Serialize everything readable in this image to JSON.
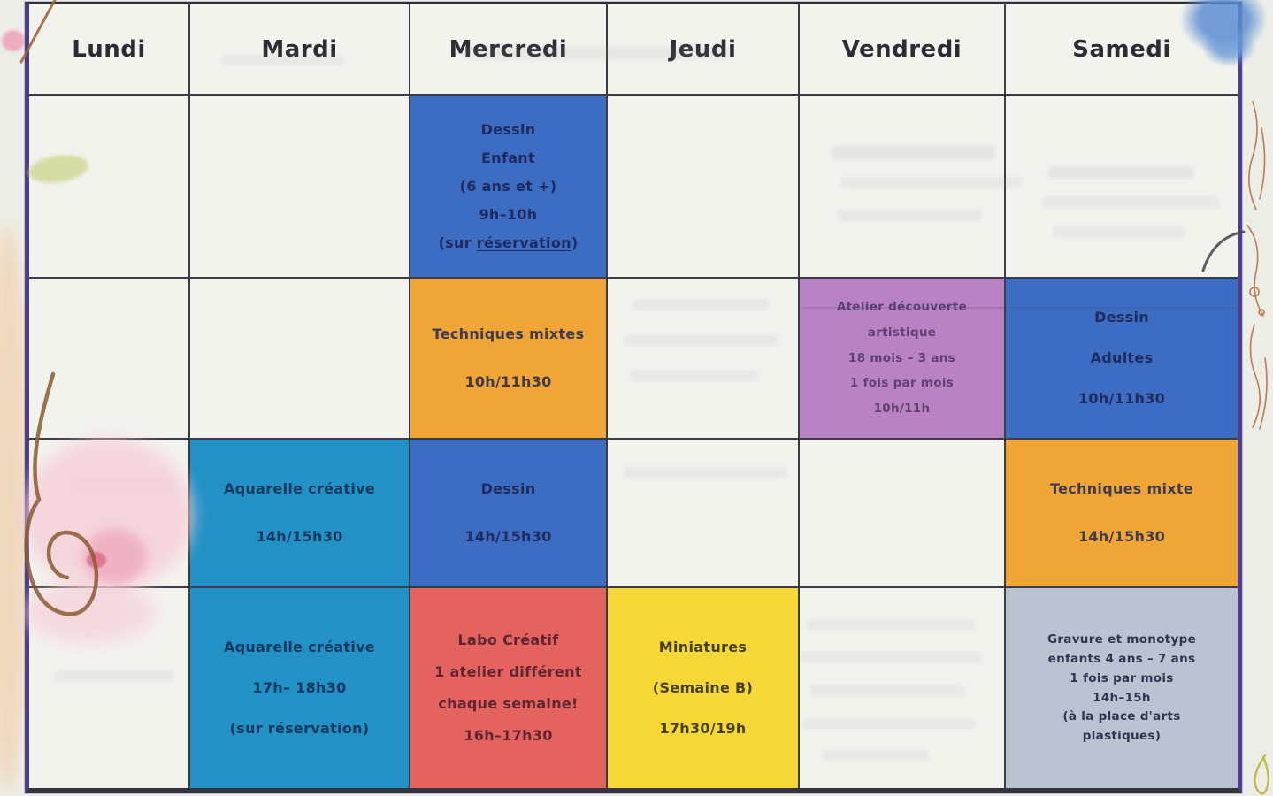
{
  "schedule": {
    "days": [
      {
        "id": "lundi",
        "label": "Lundi"
      },
      {
        "id": "mardi",
        "label": "Mardi"
      },
      {
        "id": "mercredi",
        "label": "Mercredi"
      },
      {
        "id": "jeudi",
        "label": "Jeudi"
      },
      {
        "id": "vendredi",
        "label": "Vendredi"
      },
      {
        "id": "samedi",
        "label": "Samedi"
      }
    ],
    "palette": {
      "blue": {
        "bg": "#3c6dc3",
        "text": "#1f2a5e"
      },
      "orange": {
        "bg": "#f0a636",
        "text": "#3f3a4d"
      },
      "teal": {
        "bg": "#2191c6",
        "text": "#16395f"
      },
      "purple": {
        "bg": "#b982c4",
        "text": "#5d3f72"
      },
      "red": {
        "bg": "#e5635e",
        "text": "#5f2632"
      },
      "yellow": {
        "bg": "#f5d835",
        "text": "#474019"
      },
      "gray": {
        "bg": "#b9c3d2",
        "text": "#2f3550"
      }
    },
    "frame_color": "#4d3f8c",
    "events": [
      {
        "id": "dessin-enfant",
        "day": "mercredi",
        "slot": 1,
        "color": "blue",
        "lines": [
          "Dessin",
          "Enfant",
          "(6 ans et +)",
          "9h–10h",
          "(sur réservation)"
        ],
        "underline": "réservation"
      },
      {
        "id": "techniques-mixtes-mercredi",
        "day": "mercredi",
        "slot": 2,
        "color": "orange",
        "lines": [
          "Techniques mixtes",
          "10h/11h30"
        ]
      },
      {
        "id": "atelier-decouverte",
        "day": "vendredi",
        "slot": 2,
        "color": "purple",
        "small": true,
        "lines": [
          "Atelier découverte",
          "artistique",
          "18 mois – 3 ans",
          "1 fois par mois",
          "10h/11h"
        ]
      },
      {
        "id": "dessin-adultes",
        "day": "samedi",
        "slot": 2,
        "color": "blue",
        "lines": [
          "Dessin",
          "Adultes",
          "10h/11h30"
        ]
      },
      {
        "id": "aquarelle-creative-14h",
        "day": "mardi",
        "slot": 3,
        "color": "teal",
        "lines": [
          "Aquarelle créative",
          "14h/15h30"
        ]
      },
      {
        "id": "dessin-14h",
        "day": "mercredi",
        "slot": 3,
        "color": "blue",
        "lines": [
          "Dessin",
          "14h/15h30"
        ]
      },
      {
        "id": "techniques-mixte-samedi",
        "day": "samedi",
        "slot": 3,
        "color": "orange",
        "lines": [
          "Techniques mixte",
          "14h/15h30"
        ]
      },
      {
        "id": "aquarelle-creative-17h",
        "day": "mardi",
        "slot": 4,
        "color": "teal",
        "lines": [
          "Aquarelle créative",
          "17h– 18h30",
          "(sur réservation)"
        ]
      },
      {
        "id": "labo-creatif",
        "day": "mercredi",
        "slot": 4,
        "color": "red",
        "lines": [
          "Labo Créatif",
          "1 atelier différent",
          "chaque semaine!",
          "16h–17h30"
        ]
      },
      {
        "id": "miniatures",
        "day": "jeudi",
        "slot": 4,
        "color": "yellow",
        "lines": [
          "Miniatures",
          "(Semaine B)",
          "17h30/19h"
        ]
      },
      {
        "id": "gravure-monotype",
        "day": "samedi",
        "slot": 4,
        "color": "gray",
        "small": true,
        "lines": [
          "Gravure et monotype",
          "enfants 4 ans – 7 ans",
          "1 fois par mois",
          "14h–15h",
          "(à la place d'arts",
          "plastiques)"
        ]
      }
    ]
  }
}
